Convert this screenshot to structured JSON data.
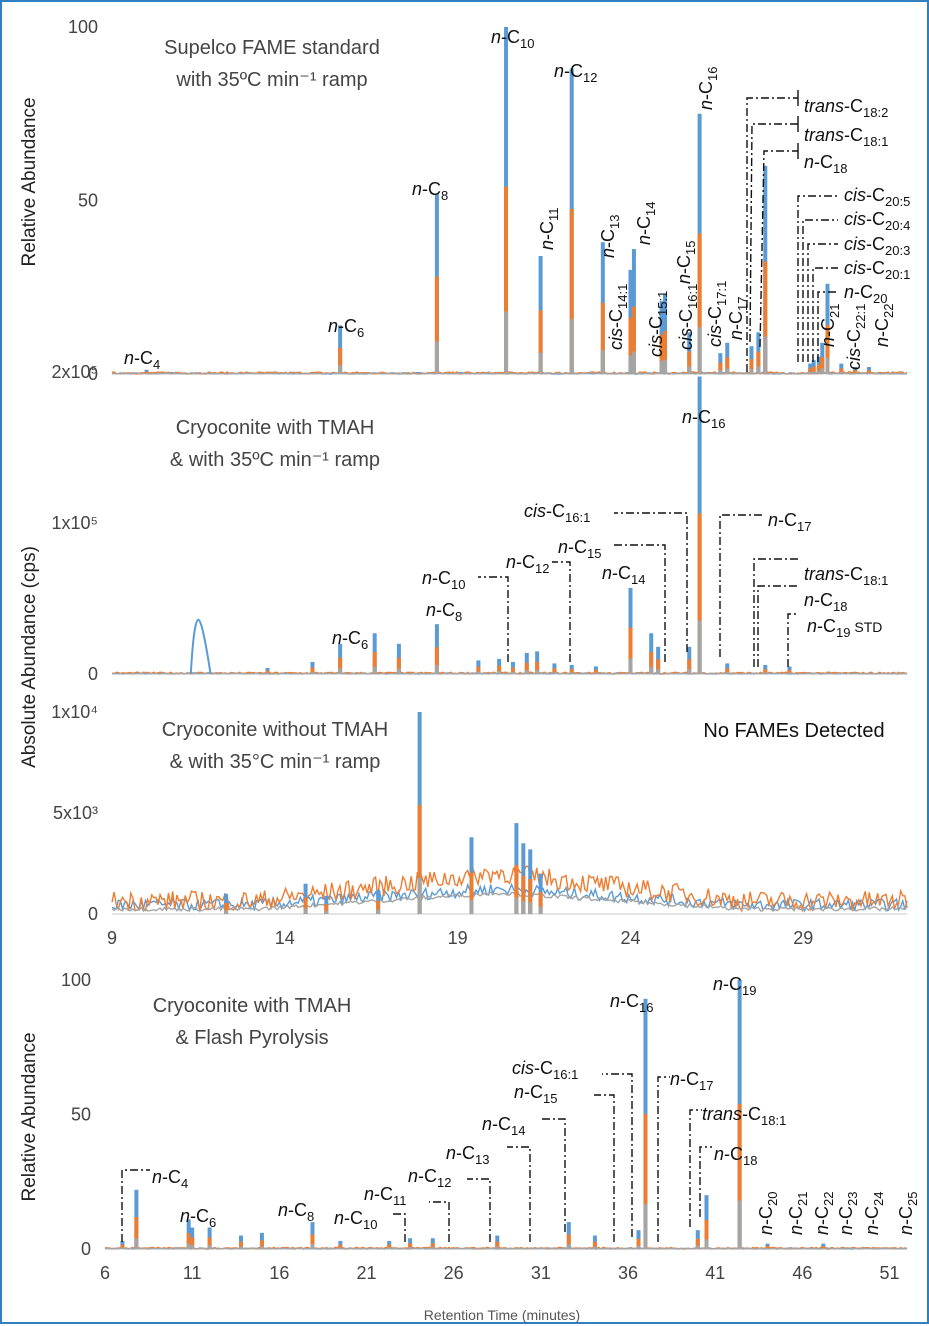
{
  "chart_data": [
    {
      "type": "line",
      "title_lines": [
        "Supelco FAME standard",
        "with 35ºC min⁻¹ ramp"
      ],
      "ylabel": "Relative Abundance",
      "yticks": [
        "0",
        "50",
        "100"
      ],
      "ylim": [
        0,
        100
      ],
      "xlim": [
        9,
        32
      ],
      "series_colors": [
        "#5b9bd5",
        "#ed7d31",
        "#a5a5a5"
      ],
      "peaks": [
        {
          "label": "n-C4",
          "x": 10.0,
          "y": 1.2
        },
        {
          "label": "n-C6",
          "x": 15.6,
          "y": 14
        },
        {
          "label": "n-C8",
          "x": 18.4,
          "y": 52
        },
        {
          "label": "n-C10",
          "x": 20.4,
          "y": 100
        },
        {
          "label": "n-C11",
          "x": 21.4,
          "y": 34
        },
        {
          "label": "n-C12",
          "x": 22.3,
          "y": 88
        },
        {
          "label": "n-C13",
          "x": 23.2,
          "y": 38
        },
        {
          "label": "cis-C14:1",
          "x": 24.0,
          "y": 30
        },
        {
          "label": "n-C14",
          "x": 24.1,
          "y": 36
        },
        {
          "label": "cis-C15:1",
          "x": 24.9,
          "y": 21
        },
        {
          "label": "n-C15",
          "x": 25.0,
          "y": 23
        },
        {
          "label": "cis-C16:1",
          "x": 25.7,
          "y": 12
        },
        {
          "label": "n-C16",
          "x": 26.0,
          "y": 75
        },
        {
          "label": "cis-C17:1",
          "x": 26.6,
          "y": 6
        },
        {
          "label": "n-C17",
          "x": 26.8,
          "y": 9
        },
        {
          "label": "trans-C18:2",
          "x": 27.5,
          "y": 8
        },
        {
          "label": "trans-C18:1",
          "x": 27.7,
          "y": 12
        },
        {
          "label": "n-C18",
          "x": 27.9,
          "y": 60
        },
        {
          "label": "cis-C20:5",
          "x": 29.2,
          "y": 3
        },
        {
          "label": "cis-C20:4",
          "x": 29.3,
          "y": 4
        },
        {
          "label": "cis-C20:3",
          "x": 29.45,
          "y": 5
        },
        {
          "label": "cis-C20:1",
          "x": 29.55,
          "y": 9
        },
        {
          "label": "n-C20",
          "x": 29.7,
          "y": 26
        },
        {
          "label": "n-C21",
          "x": 30.1,
          "y": 3
        },
        {
          "label": "cis-C22:1",
          "x": 30.5,
          "y": 2
        },
        {
          "label": "n-C22",
          "x": 30.9,
          "y": 2
        }
      ]
    },
    {
      "type": "line",
      "title_lines": [
        "Cryoconite with TMAH",
        "& with 35ºC min⁻¹ ramp"
      ],
      "ylabel": "Absolute Abundance (cps)",
      "yticks": [
        "0",
        "1x10⁵",
        "2x10⁵"
      ],
      "ylim": [
        0,
        200000
      ],
      "xlim": [
        9,
        32
      ],
      "series_colors": [
        "#5b9bd5",
        "#ed7d31",
        "#a5a5a5"
      ],
      "labels": [
        "n-C6",
        "n-C8",
        "n-C10",
        "n-C12",
        "n-C14",
        "n-C15",
        "cis-C16:1",
        "n-C16",
        "n-C17",
        "trans-C18:1",
        "n-C18",
        "n-C19 STD"
      ],
      "peaks": [
        {
          "x": 11.5,
          "y": 36000,
          "w": 0.22
        },
        {
          "x": 13.5,
          "y": 4000
        },
        {
          "x": 14.8,
          "y": 8000
        },
        {
          "x": 15.6,
          "y": 20000
        },
        {
          "x": 16.6,
          "y": 27000
        },
        {
          "x": 17.3,
          "y": 20000
        },
        {
          "x": 18.4,
          "y": 33000
        },
        {
          "x": 19.6,
          "y": 9000
        },
        {
          "x": 20.2,
          "y": 10000
        },
        {
          "x": 20.6,
          "y": 8000
        },
        {
          "x": 21.0,
          "y": 14000
        },
        {
          "x": 21.3,
          "y": 15000
        },
        {
          "x": 21.8,
          "y": 7000
        },
        {
          "x": 22.3,
          "y": 6000
        },
        {
          "x": 23.0,
          "y": 5000
        },
        {
          "x": 24.0,
          "y": 57000
        },
        {
          "x": 24.6,
          "y": 27000
        },
        {
          "x": 24.8,
          "y": 18000
        },
        {
          "x": 25.7,
          "y": 18000
        },
        {
          "x": 26.0,
          "y": 197000
        },
        {
          "x": 26.8,
          "y": 7000
        },
        {
          "x": 27.9,
          "y": 6000
        },
        {
          "x": 28.6,
          "y": 5000
        }
      ]
    },
    {
      "type": "line",
      "title_lines": [
        "Cryoconite without TMAH",
        "& with 35°C min⁻¹ ramp"
      ],
      "annotation": "No FAMEs Detected",
      "yticks": [
        "0",
        "5x10³",
        "1x10⁴"
      ],
      "ylim": [
        0,
        10000
      ],
      "xlim": [
        9,
        32
      ],
      "xticks": [
        9,
        14,
        19,
        24,
        29
      ],
      "series_colors": [
        "#5b9bd5",
        "#ed7d31",
        "#a5a5a5"
      ],
      "peaks": [
        {
          "x": 12.3,
          "y": 1000
        },
        {
          "x": 14.6,
          "y": 1500
        },
        {
          "x": 15.2,
          "y": 900
        },
        {
          "x": 16.7,
          "y": 1200
        },
        {
          "x": 17.9,
          "y": 10000
        },
        {
          "x": 19.4,
          "y": 3800
        },
        {
          "x": 20.7,
          "y": 4500
        },
        {
          "x": 20.9,
          "y": 3500
        },
        {
          "x": 21.1,
          "y": 3200
        },
        {
          "x": 21.4,
          "y": 2000
        }
      ]
    },
    {
      "type": "line",
      "title_lines": [
        "Cryoconite with TMAH",
        "& Flash Pyrolysis"
      ],
      "ylabel": "Relative Abundance",
      "xlabel": "Retention Time (minutes)",
      "yticks": [
        "0",
        "50",
        "100"
      ],
      "ylim": [
        0,
        100
      ],
      "xlim": [
        6,
        52
      ],
      "xticks": [
        6,
        11,
        16,
        21,
        26,
        31,
        36,
        41,
        46,
        51
      ],
      "series_colors": [
        "#5b9bd5",
        "#ed7d31",
        "#a5a5a5"
      ],
      "labels": [
        "n-C4",
        "n-C6",
        "n-C8",
        "n-C10",
        "n-C11",
        "n-C12",
        "n-C13",
        "n-C14",
        "n-C15",
        "cis-C16:1",
        "n-C16",
        "n-C17",
        "trans-C18:1",
        "n-C18",
        "n-C19",
        "n-C20",
        "n-C21",
        "n-C22",
        "n-C23",
        "n-C24",
        "n-C25"
      ],
      "peaks": [
        {
          "x": 7.0,
          "y": 3
        },
        {
          "x": 7.8,
          "y": 22
        },
        {
          "x": 10.8,
          "y": 11
        },
        {
          "x": 11.0,
          "y": 8
        },
        {
          "x": 12.0,
          "y": 8
        },
        {
          "x": 13.8,
          "y": 5
        },
        {
          "x": 15.0,
          "y": 6
        },
        {
          "x": 17.9,
          "y": 10
        },
        {
          "x": 19.5,
          "y": 3
        },
        {
          "x": 22.3,
          "y": 3
        },
        {
          "x": 23.5,
          "y": 4
        },
        {
          "x": 24.8,
          "y": 4
        },
        {
          "x": 28.5,
          "y": 5
        },
        {
          "x": 32.6,
          "y": 10
        },
        {
          "x": 34.1,
          "y": 5
        },
        {
          "x": 36.6,
          "y": 7
        },
        {
          "x": 37.0,
          "y": 93
        },
        {
          "x": 40.0,
          "y": 7
        },
        {
          "x": 40.5,
          "y": 20
        },
        {
          "x": 42.4,
          "y": 100
        },
        {
          "x": 44.0,
          "y": 2
        },
        {
          "x": 47.2,
          "y": 2
        }
      ]
    }
  ]
}
